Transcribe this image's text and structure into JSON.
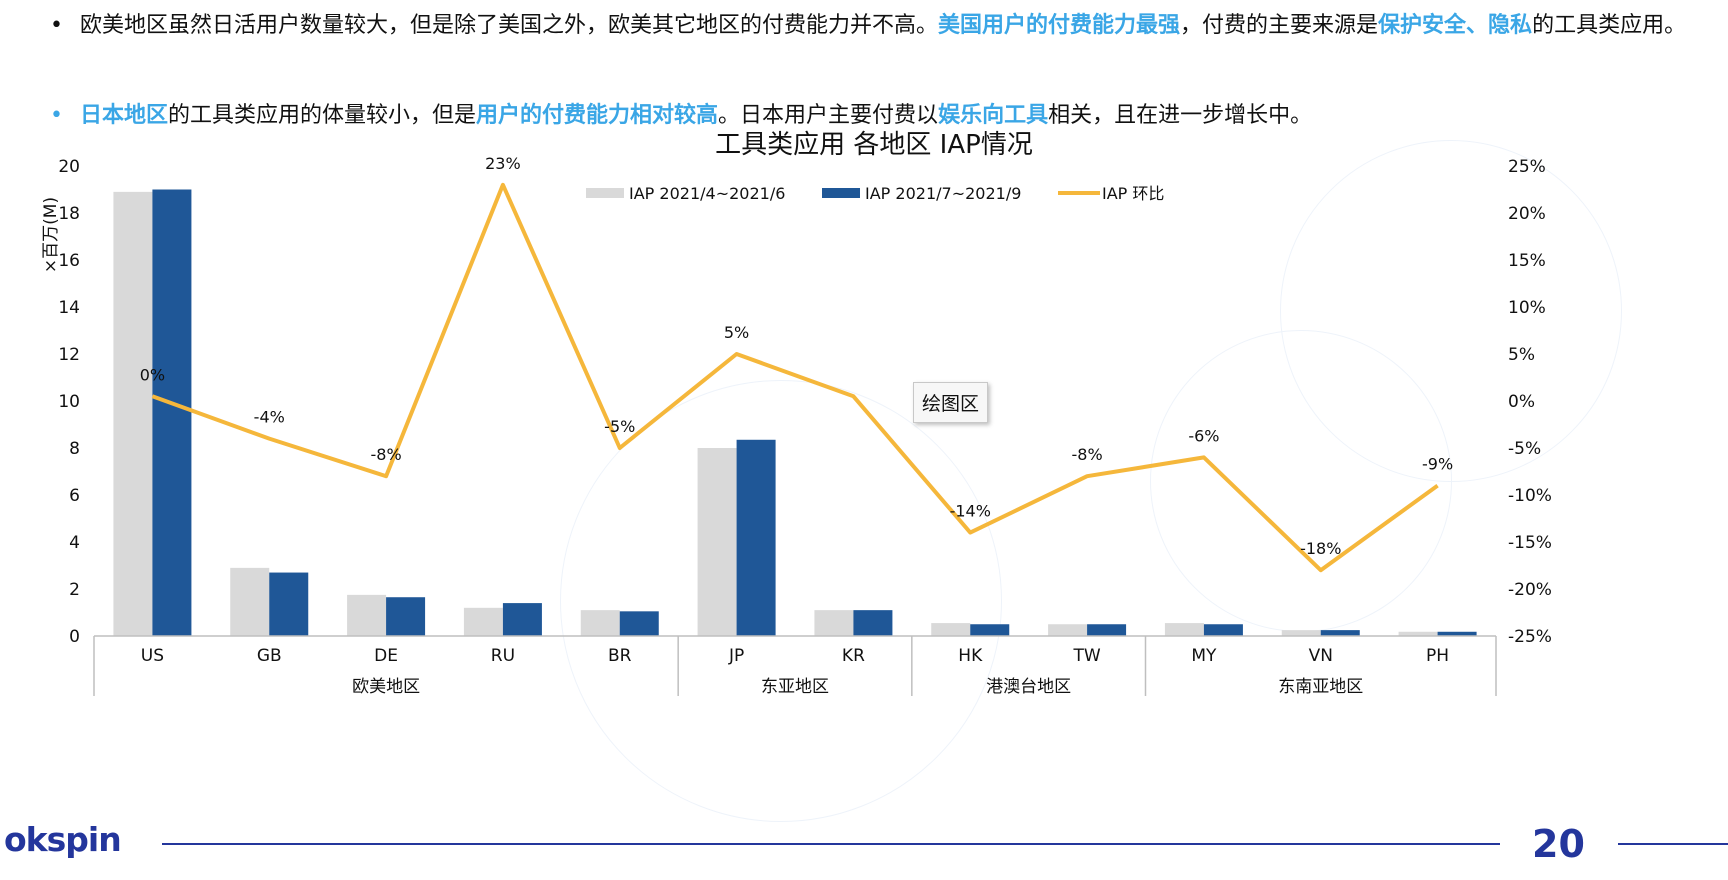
{
  "bullets": [
    {
      "segments": [
        {
          "text": "欧美地区虽然日活用户数量较大，但是除了美国之外，欧美其它地区的付费能力并不高。",
          "hl": false
        },
        {
          "text": "美国用户的付费能力最强",
          "hl": true
        },
        {
          "text": "，付费的主要来源是",
          "hl": false
        },
        {
          "text": "保护安全、隐私",
          "hl": true
        },
        {
          "text": "的工具类应用。",
          "hl": false
        }
      ]
    },
    {
      "segments": [
        {
          "text": "日本地区",
          "hl": true
        },
        {
          "text": "的工具类应用的体量较小，但是",
          "hl": false
        },
        {
          "text": "用户的付费能力相对较高",
          "hl": true
        },
        {
          "text": "。日本用户主要付费以",
          "hl": false
        },
        {
          "text": "娱乐向工具",
          "hl": true
        },
        {
          "text": "相关，且在进一步增长中。",
          "hl": false
        }
      ]
    }
  ],
  "tooltip": "绘图区",
  "footer": {
    "logo": "okspin",
    "page_number": "20"
  },
  "colors": {
    "series1": "#d9d9d9",
    "series2": "#1f5797",
    "line": "#f5b73b",
    "highlight": "#3aa6e6",
    "brand": "#24369c"
  },
  "chart_data": {
    "type": "bar",
    "title": "工具类应用 各地区 IAP情况",
    "ylabel": "×百万(M)",
    "ylim": [
      0,
      20
    ],
    "yticks": [
      0,
      2,
      4,
      6,
      8,
      10,
      12,
      14,
      16,
      18,
      20
    ],
    "y2lim": [
      -25,
      25
    ],
    "y2ticks": [
      "25%",
      "20%",
      "15%",
      "10%",
      "5%",
      "0%",
      "-5%",
      "-10%",
      "-15%",
      "-20%",
      "-25%"
    ],
    "categories": [
      "US",
      "GB",
      "DE",
      "RU",
      "BR",
      "JP",
      "KR",
      "HK",
      "TW",
      "MY",
      "VN",
      "PH"
    ],
    "groups": [
      {
        "label": "欧美地区",
        "count": 5
      },
      {
        "label": "东亚地区",
        "count": 2
      },
      {
        "label": "港澳台地区",
        "count": 2
      },
      {
        "label": "东南亚地区",
        "count": 3
      }
    ],
    "series": [
      {
        "name": "IAP 2021/4~2021/6",
        "type": "bar",
        "values": [
          18.9,
          2.9,
          1.75,
          1.2,
          1.1,
          8.0,
          1.1,
          0.55,
          0.5,
          0.55,
          0.25,
          0.18
        ]
      },
      {
        "name": "IAP 2021/7~2021/9",
        "type": "bar",
        "values": [
          19.0,
          2.7,
          1.65,
          1.4,
          1.05,
          8.35,
          1.1,
          0.5,
          0.5,
          0.5,
          0.25,
          0.18
        ]
      },
      {
        "name": "IAP 环比",
        "type": "line",
        "axis": "right",
        "values": [
          0.5,
          -4,
          -8,
          23,
          -5,
          5,
          0.5,
          -14,
          -8,
          -6,
          -18,
          -9
        ]
      }
    ],
    "data_labels": [
      "0%",
      "-4%",
      "-8%",
      "23%",
      "-5%",
      "5%",
      "",
      "-14%",
      "-8%",
      "-6%",
      "-18%",
      "-9%"
    ],
    "legend_position": "top",
    "grid": false
  }
}
